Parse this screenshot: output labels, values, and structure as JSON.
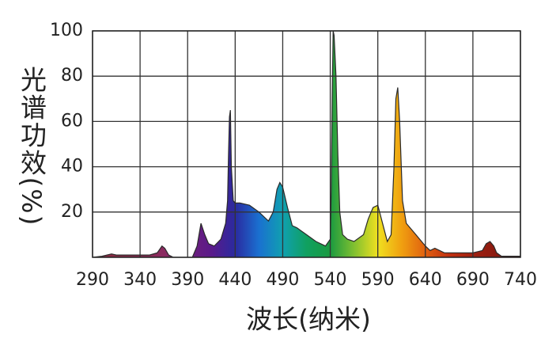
{
  "chart_data": {
    "type": "area",
    "xlabel": "波长(纳米)",
    "ylabel": "光谱功效(%)",
    "x": [
      290,
      300,
      310,
      315,
      320,
      340,
      350,
      358,
      363,
      366,
      370,
      375,
      395,
      400,
      404,
      408,
      412,
      418,
      425,
      430,
      432,
      433,
      434,
      435,
      436,
      438,
      440,
      445,
      455,
      465,
      475,
      480,
      484,
      487,
      490,
      495,
      500,
      505,
      515,
      525,
      535,
      540,
      541,
      542,
      543,
      544,
      546,
      548,
      550,
      553,
      558,
      565,
      575,
      580,
      585,
      590,
      595,
      600,
      604,
      607,
      609,
      611,
      613,
      616,
      620,
      630,
      640,
      645,
      650,
      660,
      670,
      690,
      700,
      704,
      708,
      712,
      715,
      720,
      740
    ],
    "values": [
      0,
      0.5,
      1.5,
      1,
      1,
      1,
      1,
      2,
      5,
      4,
      1,
      0,
      0,
      5,
      15,
      10,
      6,
      5,
      8,
      15,
      25,
      45,
      62,
      65,
      40,
      25,
      24,
      24,
      23,
      20,
      16,
      20,
      30,
      33,
      31,
      22,
      14,
      13,
      10,
      7,
      5,
      8,
      30,
      70,
      100,
      98,
      80,
      45,
      20,
      10,
      8,
      7,
      10,
      17,
      22,
      23,
      15,
      7,
      10,
      40,
      70,
      75,
      60,
      25,
      15,
      10,
      5,
      3,
      4,
      2,
      2,
      2,
      3,
      6,
      7,
      5,
      2,
      0.5,
      0.5
    ],
    "xlim": [
      290,
      740
    ],
    "ylim": [
      0,
      100
    ],
    "xticks": [
      290,
      340,
      390,
      440,
      490,
      540,
      590,
      640,
      690,
      740
    ],
    "yticks": [
      20,
      40,
      60,
      80,
      100
    ],
    "grid": true,
    "line_color": "#2a2a2a",
    "fill_colors": [
      "#8a2a40",
      "#8a2a45",
      "#8a2a50",
      "#8a2a60",
      "#70207a",
      "#5a1a8a",
      "#2a2aa0",
      "#1a70d0",
      "#10a0b0",
      "#10a060",
      "#1a9a40",
      "#80c030",
      "#f0e020",
      "#f0a010",
      "#e06010",
      "#c03010",
      "#a02010",
      "#8a1a10",
      "#7a1a10"
    ]
  }
}
